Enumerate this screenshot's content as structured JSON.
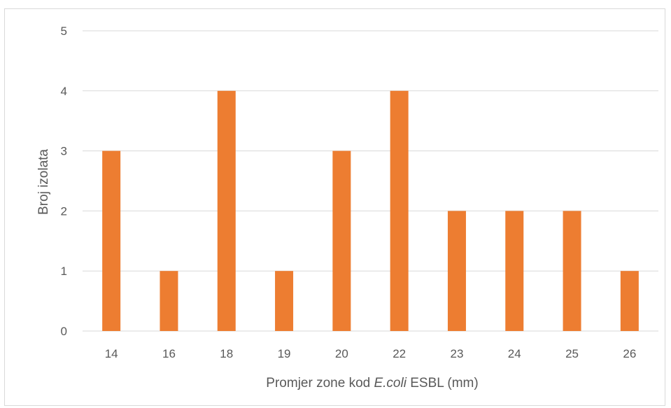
{
  "chart_data": {
    "type": "bar",
    "categories": [
      "14",
      "16",
      "18",
      "19",
      "20",
      "22",
      "23",
      "24",
      "25",
      "26"
    ],
    "values": [
      3,
      1,
      4,
      1,
      3,
      4,
      2,
      2,
      2,
      1
    ],
    "ylabel": "Broj izolata",
    "xlabel_parts": [
      {
        "text": "Promjer zone kod ",
        "italic": false
      },
      {
        "text": "E.coli",
        "italic": true
      },
      {
        "text": " ESBL (mm)",
        "italic": false
      }
    ],
    "ylim": [
      0,
      5
    ],
    "yticks": [
      "0",
      "1",
      "2",
      "3",
      "4",
      "5"
    ],
    "grid": true,
    "legend": "none",
    "bar_color": "#ED7D31",
    "grid_color": "#d9d9d9"
  }
}
